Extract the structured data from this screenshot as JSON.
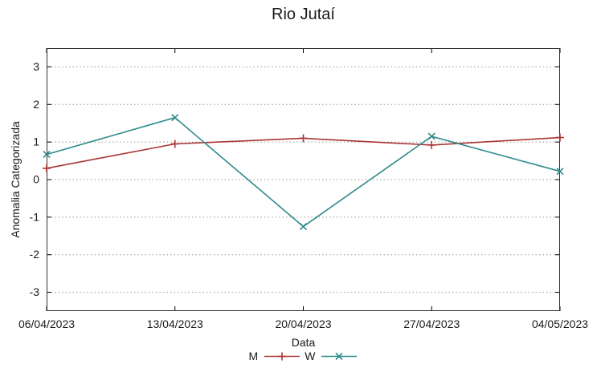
{
  "chart_data": {
    "type": "line",
    "title": "Rio Jutaí",
    "xlabel": "Data",
    "ylabel": "Anomalia Categorizada",
    "categories": [
      "06/04/2023",
      "13/04/2023",
      "20/04/2023",
      "27/04/2023",
      "04/05/2023"
    ],
    "series": [
      {
        "name": "M",
        "color": "#ab3434",
        "marker": "plus",
        "values": [
          0.3,
          0.95,
          1.1,
          0.92,
          1.12
        ]
      },
      {
        "name": "W",
        "color": "#2e8b8b",
        "marker": "cross",
        "values": [
          0.67,
          1.65,
          -1.25,
          1.15,
          0.22
        ]
      }
    ],
    "ylim": [
      -3.5,
      3.5
    ],
    "yticks": [
      -3,
      -2,
      -1,
      0,
      1,
      2,
      3
    ],
    "grid": "horizontal-dotted",
    "gridline_color": "#999999",
    "axis_color": "#333333",
    "legend_position": "bottom-center"
  }
}
